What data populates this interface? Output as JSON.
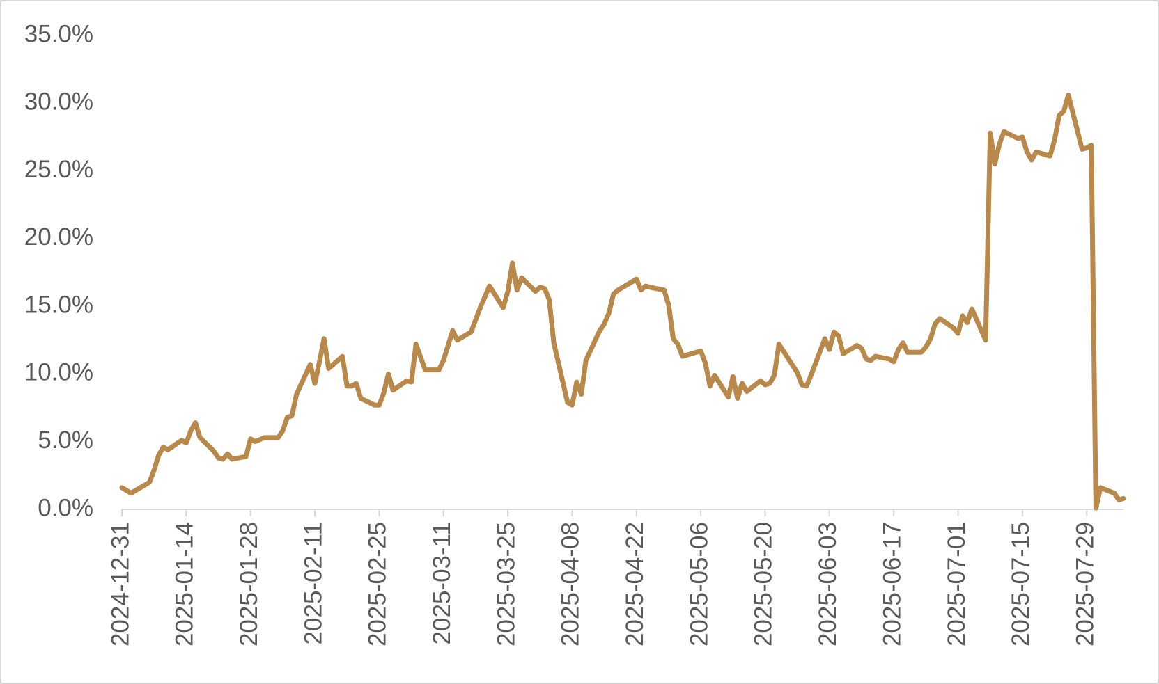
{
  "chart_data": {
    "type": "line",
    "x": [
      "2024-12-31",
      "2025-01-02",
      "2025-01-06",
      "2025-01-07",
      "2025-01-08",
      "2025-01-09",
      "2025-01-10",
      "2025-01-13",
      "2025-01-14",
      "2025-01-15",
      "2025-01-16",
      "2025-01-17",
      "2025-01-20",
      "2025-01-21",
      "2025-01-22",
      "2025-01-23",
      "2025-01-24",
      "2025-01-27",
      "2025-01-28",
      "2025-01-29",
      "2025-01-31",
      "2025-02-03",
      "2025-02-04",
      "2025-02-05",
      "2025-02-06",
      "2025-02-07",
      "2025-02-10",
      "2025-02-11",
      "2025-02-12",
      "2025-02-13",
      "2025-02-14",
      "2025-02-17",
      "2025-02-18",
      "2025-02-19",
      "2025-02-20",
      "2025-02-21",
      "2025-02-24",
      "2025-02-25",
      "2025-02-26",
      "2025-02-27",
      "2025-02-28",
      "2025-03-03",
      "2025-03-04",
      "2025-03-05",
      "2025-03-07",
      "2025-03-10",
      "2025-03-11",
      "2025-03-12",
      "2025-03-13",
      "2025-03-14",
      "2025-03-17",
      "2025-03-19",
      "2025-03-21",
      "2025-03-24",
      "2025-03-25",
      "2025-03-26",
      "2025-03-27",
      "2025-03-28",
      "2025-03-31",
      "2025-04-01",
      "2025-04-02",
      "2025-04-03",
      "2025-04-04",
      "2025-04-07",
      "2025-04-08",
      "2025-04-09",
      "2025-04-10",
      "2025-04-11",
      "2025-04-14",
      "2025-04-15",
      "2025-04-16",
      "2025-04-17",
      "2025-04-18",
      "2025-04-22",
      "2025-04-23",
      "2025-04-24",
      "2025-04-25",
      "2025-04-28",
      "2025-04-29",
      "2025-04-30",
      "2025-05-01",
      "2025-05-02",
      "2025-05-06",
      "2025-05-07",
      "2025-05-08",
      "2025-05-09",
      "2025-05-12",
      "2025-05-13",
      "2025-05-14",
      "2025-05-15",
      "2025-05-16",
      "2025-05-19",
      "2025-05-20",
      "2025-05-21",
      "2025-05-22",
      "2025-05-23",
      "2025-05-27",
      "2025-05-28",
      "2025-05-29",
      "2025-05-30",
      "2025-06-02",
      "2025-06-03",
      "2025-06-04",
      "2025-06-05",
      "2025-06-06",
      "2025-06-09",
      "2025-06-10",
      "2025-06-11",
      "2025-06-12",
      "2025-06-13",
      "2025-06-16",
      "2025-06-17",
      "2025-06-18",
      "2025-06-19",
      "2025-06-20",
      "2025-06-23",
      "2025-06-24",
      "2025-06-25",
      "2025-06-26",
      "2025-06-27",
      "2025-06-30",
      "2025-07-01",
      "2025-07-02",
      "2025-07-03",
      "2025-07-04",
      "2025-07-07",
      "2025-07-08",
      "2025-07-09",
      "2025-07-10",
      "2025-07-11",
      "2025-07-14",
      "2025-07-15",
      "2025-07-16",
      "2025-07-17",
      "2025-07-18",
      "2025-07-21",
      "2025-07-22",
      "2025-07-23",
      "2025-07-24",
      "2025-07-25",
      "2025-07-28",
      "2025-07-29",
      "2025-07-30",
      "2025-07-31",
      "2025-08-01",
      "2025-08-04",
      "2025-08-05",
      "2025-08-06"
    ],
    "values": [
      1.6,
      1.2,
      2.0,
      2.9,
      4.0,
      4.6,
      4.4,
      5.1,
      4.9,
      5.8,
      6.4,
      5.3,
      4.3,
      3.8,
      3.7,
      4.1,
      3.7,
      3.9,
      5.2,
      5.0,
      5.3,
      5.3,
      5.8,
      6.8,
      6.9,
      8.5,
      10.7,
      9.3,
      10.9,
      12.6,
      10.4,
      11.3,
      9.1,
      9.1,
      9.3,
      8.2,
      7.7,
      7.7,
      8.6,
      10.0,
      8.8,
      9.5,
      9.4,
      12.2,
      10.3,
      10.3,
      11.0,
      12.1,
      13.2,
      12.5,
      13.1,
      14.9,
      16.5,
      14.9,
      16.1,
      18.2,
      16.2,
      17.1,
      16.1,
      16.4,
      16.3,
      15.5,
      12.3,
      7.9,
      7.7,
      9.4,
      8.5,
      11.0,
      13.2,
      13.7,
      14.5,
      15.9,
      16.2,
      17.0,
      16.2,
      16.5,
      16.4,
      16.2,
      15.1,
      12.6,
      12.2,
      11.3,
      11.7,
      10.8,
      9.1,
      9.9,
      8.3,
      9.8,
      8.2,
      9.3,
      8.7,
      9.5,
      9.2,
      9.3,
      9.9,
      12.2,
      10.1,
      9.2,
      9.1,
      9.9,
      12.6,
      11.8,
      13.1,
      12.8,
      11.5,
      12.1,
      11.9,
      11.1,
      11.0,
      11.3,
      11.1,
      10.9,
      11.8,
      12.3,
      11.6,
      11.6,
      12.0,
      12.6,
      13.7,
      14.1,
      13.4,
      13.0,
      14.3,
      13.8,
      14.8,
      12.5,
      27.8,
      25.5,
      27.0,
      27.9,
      27.4,
      27.5,
      26.4,
      25.8,
      26.4,
      26.1,
      27.3,
      29.1,
      29.4,
      30.6,
      26.6,
      26.7,
      26.9,
      0.1,
      1.6,
      1.2,
      0.7,
      0.8
    ],
    "color": "#b8894a",
    "xlim": [
      "2024-12-31",
      "2025-08-06"
    ],
    "xticks": [
      "2024-12-31",
      "2025-01-14",
      "2025-01-28",
      "2025-02-11",
      "2025-02-25",
      "2025-03-11",
      "2025-03-25",
      "2025-04-08",
      "2025-04-22",
      "2025-05-06",
      "2025-05-20",
      "2025-06-03",
      "2025-06-17",
      "2025-07-01",
      "2025-07-15",
      "2025-07-29"
    ],
    "ylim": [
      0,
      35
    ],
    "yticks": [
      {
        "value": 0,
        "label": "0.0%"
      },
      {
        "value": 5,
        "label": "5.0%"
      },
      {
        "value": 10,
        "label": "10.0%"
      },
      {
        "value": 15,
        "label": "15.0%"
      },
      {
        "value": 20,
        "label": "20.0%"
      },
      {
        "value": 25,
        "label": "25.0%"
      },
      {
        "value": 30,
        "label": "30.0%"
      },
      {
        "value": 35,
        "label": "35.0%"
      }
    ],
    "grid": false
  }
}
